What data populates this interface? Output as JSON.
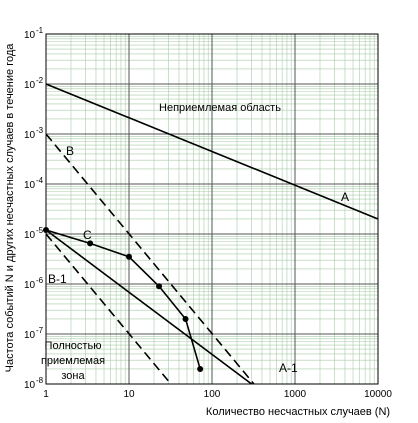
{
  "chart_data": {
    "type": "line",
    "xscale": "log",
    "yscale": "log",
    "xlim": [
      1,
      10000
    ],
    "ylim": [
      1e-08,
      0.1
    ],
    "grid": true,
    "xlabel": "Количество несчастных случаев (N)",
    "ylabel": "Частота событий N и других несчастных случаев в течение года",
    "x_ticks": [
      {
        "value": 1,
        "label": "1"
      },
      {
        "value": 10,
        "label": "10"
      },
      {
        "value": 100,
        "label": "100"
      },
      {
        "value": 1000,
        "label": "1000"
      },
      {
        "value": 10000,
        "label": "10000"
      }
    ],
    "y_ticks": [
      {
        "value": 1e-08,
        "base": "10",
        "exp": "-8"
      },
      {
        "value": 1e-07,
        "base": "10",
        "exp": "-7"
      },
      {
        "value": 1e-06,
        "base": "10",
        "exp": "-6"
      },
      {
        "value": 1e-05,
        "base": "10",
        "exp": "-5"
      },
      {
        "value": 0.0001,
        "base": "10",
        "exp": "-4"
      },
      {
        "value": 0.001,
        "base": "10",
        "exp": "-3"
      },
      {
        "value": 0.01,
        "base": "10",
        "exp": "-2"
      },
      {
        "value": 0.1,
        "base": "10",
        "exp": "-1"
      }
    ],
    "series": [
      {
        "name": "A",
        "style": "solid",
        "x": [
          1,
          10000
        ],
        "y": [
          0.01,
          2e-05
        ]
      },
      {
        "name": "B",
        "style": "dashed",
        "x": [
          1,
          320
        ],
        "y": [
          0.001,
          1e-08
        ]
      },
      {
        "name": "B-1",
        "style": "dashed",
        "x": [
          1,
          32
        ],
        "y": [
          1e-05,
          1e-08
        ]
      },
      {
        "name": "A-1",
        "style": "solid",
        "x": [
          1,
          300
        ],
        "y": [
          1.2e-05,
          1e-08
        ]
      },
      {
        "name": "C",
        "style": "solid",
        "markers": true,
        "x": [
          1,
          3.4,
          10,
          23,
          48,
          72
        ],
        "y": [
          1.2e-05,
          6.5e-06,
          3.5e-06,
          9e-07,
          2e-07,
          2e-08
        ]
      }
    ],
    "annotations": [
      {
        "text": "Неприемлемая область",
        "x": 220,
        "y": 0.0033
      },
      {
        "text": "Полностью",
        "x": 6.1,
        "y": 1.25e-07
      },
      {
        "text": "приемлемая",
        "x": 6.1,
        "y": 5.5e-08
      },
      {
        "text": "зона",
        "x": 6.1,
        "y": 2.4e-08
      }
    ]
  }
}
